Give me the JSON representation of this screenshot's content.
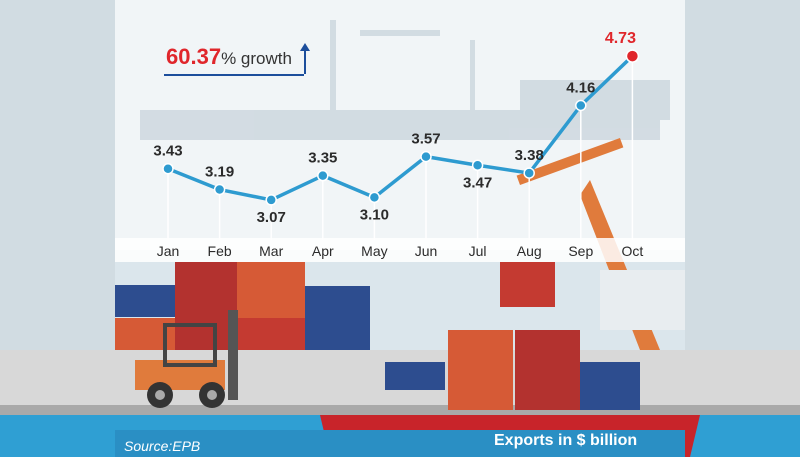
{
  "chart_data": {
    "type": "line",
    "categories": [
      "Jan",
      "Feb",
      "Mar",
      "Apr",
      "May",
      "Jun",
      "Jul",
      "Aug",
      "Sep",
      "Oct"
    ],
    "values": [
      3.43,
      3.19,
      3.07,
      3.35,
      3.1,
      3.57,
      3.47,
      3.38,
      4.16,
      4.73
    ],
    "value_labels": [
      "3.43",
      "3.19",
      "3.07",
      "3.35",
      "3.10",
      "3.57",
      "3.47",
      "3.38",
      "4.16",
      "4.73"
    ],
    "highlight_last": true,
    "title": "Exports in $ billion",
    "ylim": [
      3.0,
      4.8
    ],
    "grid": false,
    "colors": {
      "line": "#2e9bd0",
      "highlight": "#e0262b"
    }
  },
  "annotation": {
    "growth_value": "60.37",
    "growth_suffix": "% growth"
  },
  "source": "Source:EPB"
}
